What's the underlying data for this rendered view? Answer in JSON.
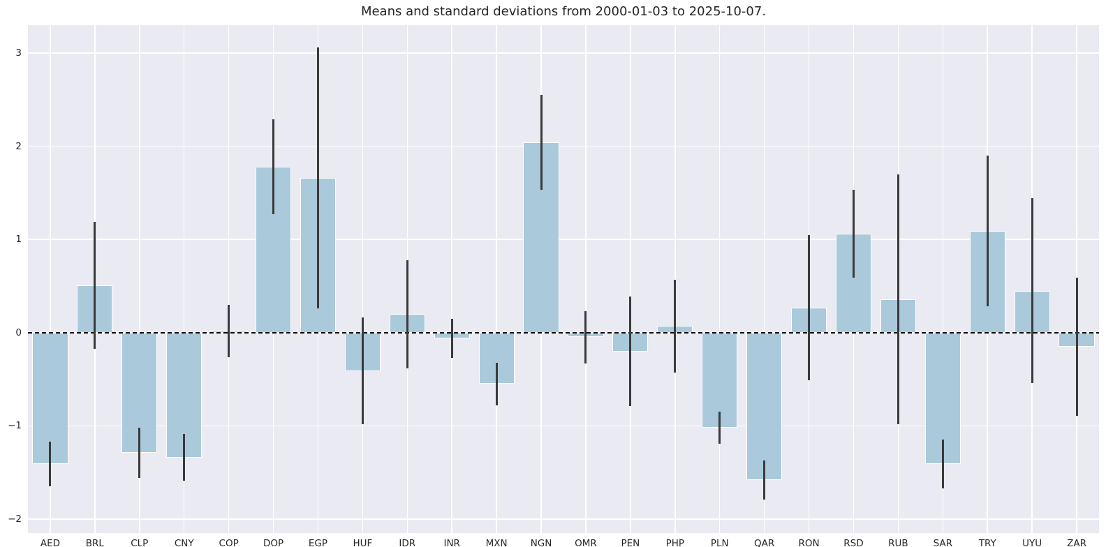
{
  "chart_data": {
    "type": "bar",
    "title": "Means and standard deviations from 2000-01-03 to 2025-10-07.",
    "xlabel": "",
    "ylabel": "",
    "categories": [
      "AED",
      "BRL",
      "CLP",
      "CNY",
      "COP",
      "DOP",
      "EGP",
      "HUF",
      "IDR",
      "INR",
      "MXN",
      "NGN",
      "OMR",
      "PEN",
      "PHP",
      "PLN",
      "QAR",
      "RON",
      "RSD",
      "RUB",
      "SAR",
      "TRY",
      "UYU",
      "ZAR"
    ],
    "series": [
      {
        "name": "mean",
        "values": [
          -1.41,
          0.51,
          -1.29,
          -1.34,
          0.02,
          1.78,
          1.66,
          -0.41,
          0.2,
          -0.06,
          -0.55,
          2.04,
          -0.05,
          -0.2,
          0.07,
          -1.02,
          -1.58,
          0.27,
          1.06,
          0.36,
          -1.41,
          1.09,
          0.45,
          -0.15
        ]
      },
      {
        "name": "std",
        "values": [
          0.24,
          0.68,
          0.27,
          0.25,
          0.28,
          0.51,
          1.4,
          0.57,
          0.58,
          0.21,
          0.23,
          0.51,
          0.28,
          0.59,
          0.5,
          0.17,
          0.21,
          0.78,
          0.47,
          1.34,
          0.26,
          0.81,
          0.99,
          0.74
        ]
      },
      {
        "name": "error_low",
        "values": [
          -1.65,
          -0.17,
          -1.56,
          -1.59,
          -0.26,
          1.27,
          0.26,
          -0.98,
          -0.38,
          -0.27,
          -0.78,
          1.53,
          -0.33,
          -0.79,
          -0.43,
          -1.19,
          -1.79,
          -0.51,
          0.59,
          -0.98,
          -1.67,
          0.28,
          -0.54,
          -0.89
        ]
      },
      {
        "name": "error_high",
        "values": [
          -1.17,
          1.19,
          -1.02,
          -1.09,
          0.3,
          2.29,
          3.06,
          0.16,
          0.78,
          0.15,
          -0.32,
          2.55,
          0.23,
          0.39,
          0.57,
          -0.85,
          -1.37,
          1.05,
          1.53,
          1.7,
          -1.15,
          1.9,
          1.44,
          0.59
        ]
      }
    ],
    "ylim": [
      -2.15,
      3.3
    ],
    "ytick_values": [
      -2,
      -1,
      0,
      1,
      2,
      3
    ],
    "ytick_labels": [
      "−2",
      "−1",
      "0",
      "1",
      "2",
      "3"
    ],
    "grid": true,
    "legend": "none",
    "zero_line": "dashed",
    "style": {
      "axes_background": "#eaeaf2",
      "grid_color": "#ffffff",
      "bar_fill": "#aac9da",
      "bar_edge": "#ffffff",
      "error_color": "#3a3a3a",
      "zero_line_color": "#000000",
      "text_color": "#262626",
      "figure_background": "#ffffff"
    }
  }
}
